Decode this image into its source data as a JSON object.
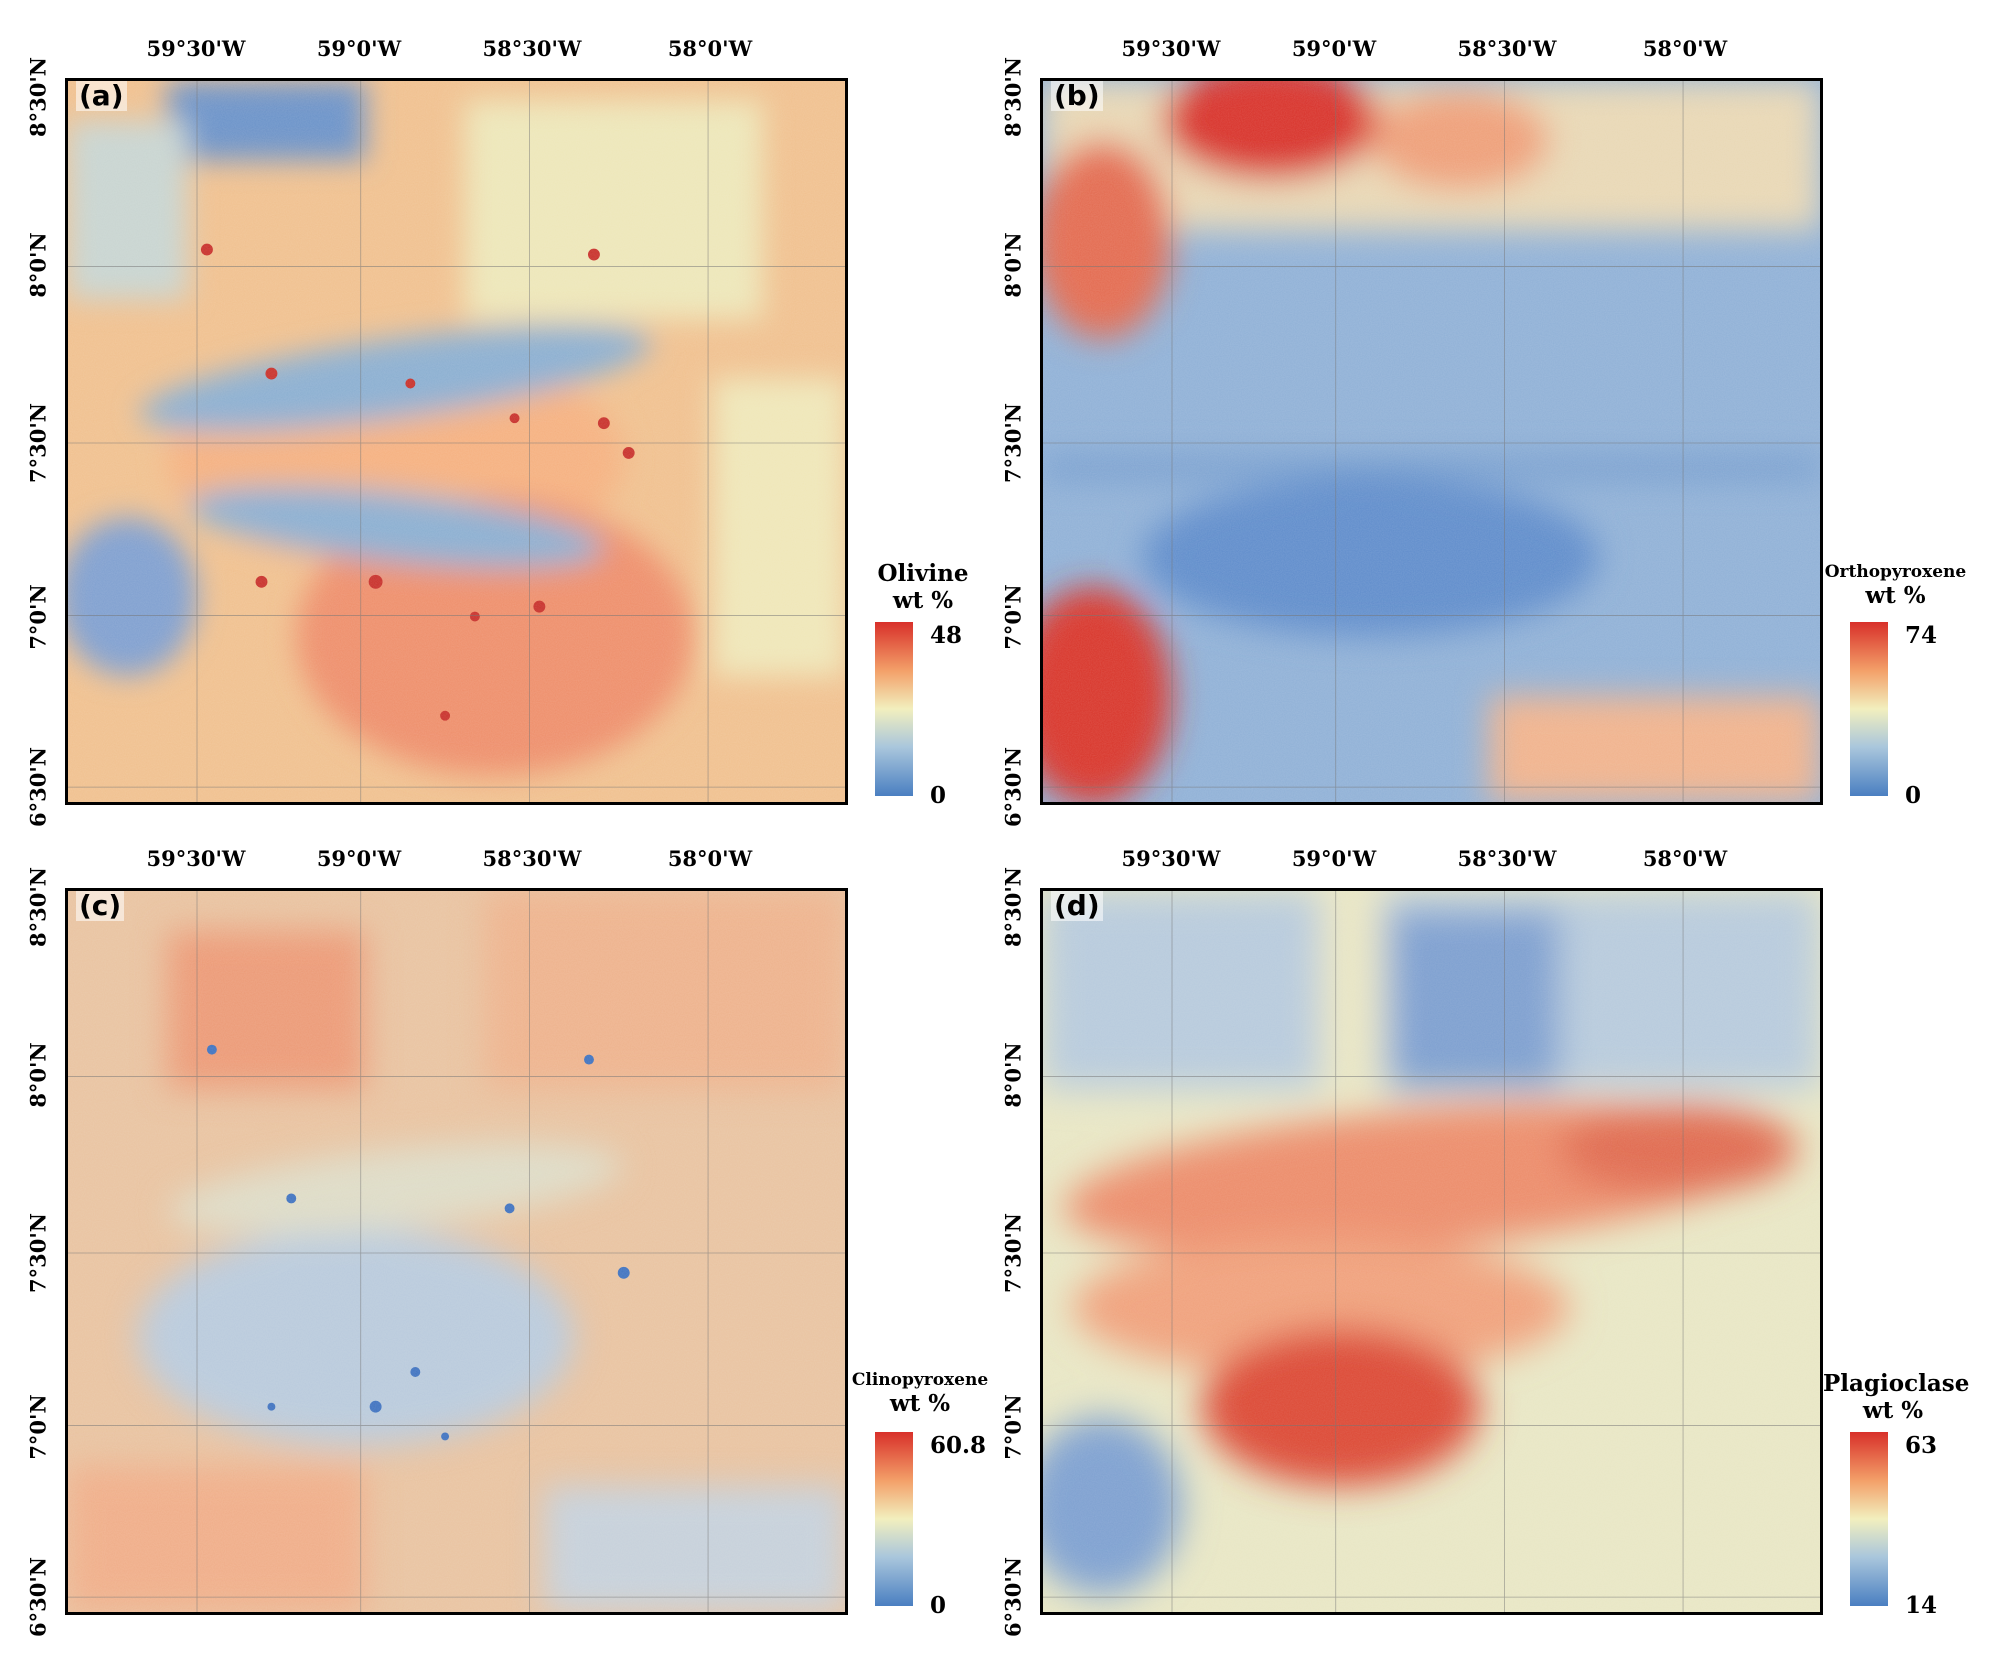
{
  "axes": {
    "lon_ticks": [
      "59°30'W",
      "59°0'W",
      "58°30'W",
      "58°0'W"
    ],
    "lat_ticks": [
      "8°30'N",
      "8°0'N",
      "7°30'N",
      "7°0'N",
      "6°30'N"
    ]
  },
  "colormap": {
    "low": "#4a7fc1",
    "mid": "#f2efbe",
    "high": "#d8302a"
  },
  "panels": [
    {
      "label": "(a)",
      "mineral": "Olivine",
      "unit": "wt %",
      "max": "48",
      "min": "0"
    },
    {
      "label": "(b)",
      "mineral": "Orthopyroxene",
      "unit": "wt %",
      "max": "74",
      "min": "0"
    },
    {
      "label": "(c)",
      "mineral": "Clinopyroxene",
      "unit": "wt %",
      "max": "60.8",
      "min": "0"
    },
    {
      "label": "(d)",
      "mineral": "Plagioclase",
      "unit": "wt %",
      "max": "63",
      "min": "14"
    }
  ]
}
